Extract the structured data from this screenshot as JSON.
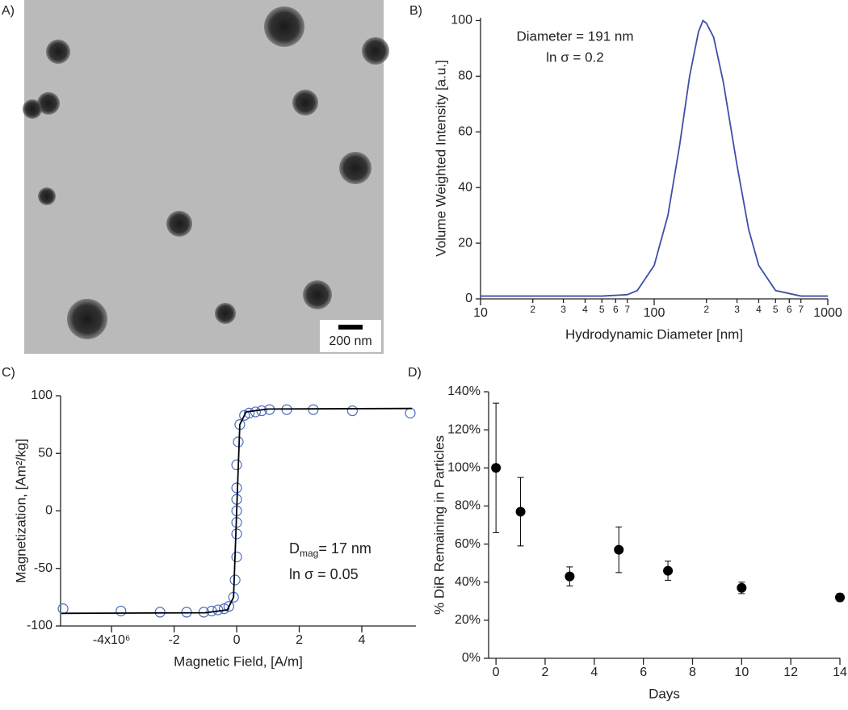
{
  "chart_data": [
    {
      "type": "image",
      "label": "A)",
      "scale_bar_label": "200 nm"
    },
    {
      "type": "line",
      "label": "B)",
      "xlabel": "Hydrodynamic Diameter [nm]",
      "ylabel": "Volume Weighted Intensity [a.u.]",
      "annotations": [
        "Diameter = 191 nm",
        "ln σ = 0.2"
      ],
      "xscale": "log",
      "x": [
        10,
        50,
        70,
        80,
        100,
        120,
        140,
        160,
        180,
        191,
        200,
        220,
        250,
        300,
        350,
        400,
        500,
        700,
        1000
      ],
      "series": [
        {
          "color": "#3d4fa8",
          "values": [
            1,
            1,
            1.5,
            3,
            12,
            30,
            55,
            80,
            96,
            100,
            99,
            94,
            78,
            48,
            25,
            12,
            3,
            1,
            1
          ]
        }
      ],
      "xlim": [
        10,
        1000
      ],
      "ylim": [
        0,
        101
      ],
      "yticks": [
        0,
        20,
        40,
        60,
        80,
        100
      ],
      "xticks": [
        10,
        {
          "value": 20,
          "label": "2"
        },
        {
          "value": 30,
          "label": "3"
        },
        {
          "value": 40,
          "label": "4"
        },
        {
          "value": 50,
          "label": "5"
        },
        {
          "value": 60,
          "label": "6"
        },
        {
          "value": 70,
          "label": "7"
        },
        100,
        {
          "value": 200,
          "label": "2"
        },
        {
          "value": 300,
          "label": "3"
        },
        {
          "value": 400,
          "label": "4"
        },
        {
          "value": 500,
          "label": "5"
        },
        {
          "value": 600,
          "label": "6"
        },
        {
          "value": 700,
          "label": "7"
        },
        1000
      ]
    },
    {
      "type": "scatter",
      "label": "C)",
      "xlabel": "Magnetic Field, [A/m]",
      "ylabel": "Magnetization, [Am²/kg]",
      "annotation_1": {
        "main": "D",
        "sub": "mag",
        "rest": "= 17 nm"
      },
      "annotation_2": "ln σ = 0.05",
      "xlim": [
        -5630000,
        5730000
      ],
      "ylim": [
        -100,
        100
      ],
      "yticks": [
        -100,
        -50,
        0,
        50,
        100
      ],
      "xticks": [
        {
          "value": -4000000,
          "label": "-4x10⁶"
        },
        {
          "value": -2000000,
          "label": "-2"
        },
        0,
        {
          "value": 2000000,
          "label": "2"
        },
        {
          "value": 4000000,
          "label": "4"
        }
      ],
      "series": [
        {
          "type": "scatter",
          "color": "#4a6bbf",
          "x": [
            -5550000,
            -3700000,
            -2450000,
            -1600000,
            -1050000,
            -800000,
            -600000,
            -400000,
            -250000,
            -100000,
            -50000,
            0,
            0,
            0,
            0,
            0,
            0,
            0,
            50000,
            100000,
            250000,
            400000,
            600000,
            800000,
            1050000,
            1600000,
            2450000,
            3700000,
            5550000
          ],
          "values": [
            -85,
            -87,
            -88,
            -88,
            -88,
            -87,
            -86,
            -85,
            -83,
            -75,
            -60,
            -40,
            -20,
            -10,
            0,
            10,
            20,
            40,
            60,
            75,
            83,
            85,
            86,
            87,
            88,
            88,
            88,
            87,
            85
          ]
        },
        {
          "type": "line",
          "color": "#000000",
          "x": [
            -5600000,
            -1000000,
            -300000,
            -100000,
            0,
            100000,
            300000,
            1000000,
            5600000
          ],
          "values": [
            -89,
            -88.5,
            -86,
            -75,
            0,
            75,
            86,
            88.5,
            89
          ]
        }
      ]
    },
    {
      "type": "errorbar",
      "label": "D)",
      "xlabel": "Days",
      "ylabel": "% DiR Remaining  in Particles",
      "color": "#000000",
      "x": [
        0,
        1,
        3,
        5,
        7,
        10,
        14
      ],
      "values": [
        100,
        77,
        43,
        57,
        46,
        37,
        32
      ],
      "errors": [
        34,
        18,
        5,
        12,
        5,
        3,
        2
      ],
      "xlim": [
        -0.3,
        14
      ],
      "ylim": [
        0,
        140
      ],
      "xticks": [
        0,
        2,
        4,
        6,
        8,
        10,
        12,
        14
      ],
      "yticks": [
        {
          "value": 0,
          "label": "0%"
        },
        {
          "value": 20,
          "label": "20%"
        },
        {
          "value": 40,
          "label": "40%"
        },
        {
          "value": 60,
          "label": "60%"
        },
        {
          "value": 80,
          "label": "80%"
        },
        {
          "value": 100,
          "label": "100%"
        },
        {
          "value": 120,
          "label": "120%"
        },
        {
          "value": 140,
          "label": "140%"
        }
      ]
    }
  ]
}
